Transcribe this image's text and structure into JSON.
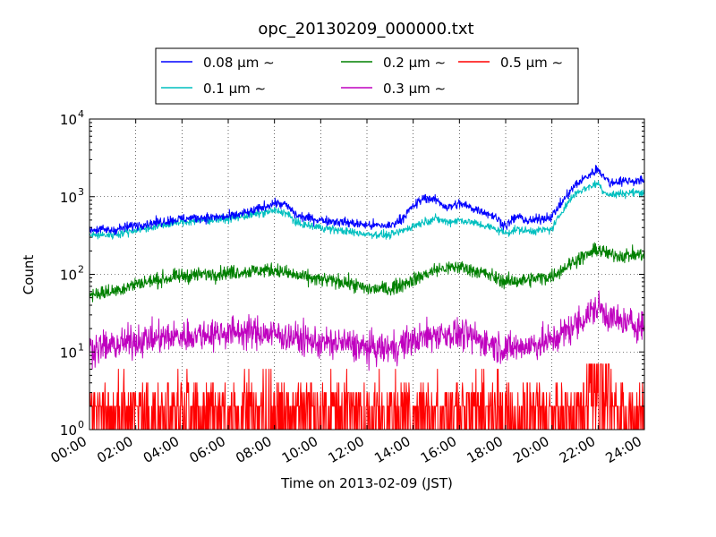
{
  "chart_data": {
    "type": "line",
    "title": "opc_20130209_000000.txt",
    "xlabel": "Time on 2013-02-09 (JST)",
    "ylabel": "Count",
    "x_unit": "hours",
    "xlim": [
      0,
      24
    ],
    "ylim": [
      1,
      10000
    ],
    "yscale": "log",
    "grid": true,
    "legend_position": "top-center",
    "x_ticks": [
      "00:00",
      "02:00",
      "04:00",
      "06:00",
      "08:00",
      "10:00",
      "12:00",
      "14:00",
      "16:00",
      "18:00",
      "20:00",
      "22:00",
      "24:00"
    ],
    "y_ticks": [
      {
        "value": 1,
        "base": "10",
        "exp": "0"
      },
      {
        "value": 10,
        "base": "10",
        "exp": "1"
      },
      {
        "value": 100,
        "base": "10",
        "exp": "2"
      },
      {
        "value": 1000,
        "base": "10",
        "exp": "3"
      },
      {
        "value": 10000,
        "base": "10",
        "exp": "4"
      }
    ],
    "series": [
      {
        "name": "0.08 μm ∼",
        "color": "#0000ff",
        "x": [
          0,
          1,
          2,
          3,
          4,
          5,
          6,
          7,
          8,
          8.5,
          9,
          10,
          11,
          12,
          13,
          13.5,
          14,
          14.5,
          15,
          15.5,
          16,
          16.5,
          17,
          17.5,
          18,
          18.5,
          19,
          20,
          20.5,
          21,
          21.5,
          22,
          22.2,
          22.5,
          23,
          24
        ],
        "y": [
          380,
          370,
          430,
          470,
          520,
          540,
          550,
          640,
          830,
          780,
          560,
          500,
          470,
          430,
          420,
          520,
          750,
          980,
          900,
          720,
          820,
          720,
          650,
          560,
          420,
          560,
          480,
          560,
          900,
          1400,
          1800,
          2300,
          1900,
          1500,
          1600,
          1600
        ],
        "noise": 0.06
      },
      {
        "name": "0.1 μm ∼",
        "color": "#00bfbf",
        "x": [
          0,
          1,
          2,
          3,
          4,
          5,
          6,
          7,
          8,
          8.5,
          9,
          10,
          11,
          12,
          13,
          13.5,
          14,
          14.5,
          15,
          15.5,
          16,
          16.5,
          17,
          17.5,
          18,
          18.5,
          19,
          20,
          20.5,
          21,
          21.5,
          22,
          22.2,
          22.5,
          23,
          24
        ],
        "y": [
          320,
          320,
          370,
          420,
          470,
          500,
          520,
          580,
          660,
          620,
          450,
          400,
          360,
          330,
          320,
          360,
          420,
          480,
          520,
          470,
          500,
          470,
          430,
          390,
          340,
          380,
          360,
          380,
          700,
          1100,
          1300,
          1500,
          1200,
          1050,
          1100,
          1150
        ],
        "noise": 0.05
      },
      {
        "name": "0.2 μm ∼",
        "color": "#008000",
        "x": [
          0,
          1,
          2,
          3,
          4,
          5,
          6,
          7,
          8,
          9,
          10,
          11,
          12,
          13,
          14,
          15,
          16,
          17,
          18,
          19,
          20,
          21,
          22,
          22.5,
          23,
          24
        ],
        "y": [
          55,
          60,
          75,
          85,
          95,
          100,
          105,
          110,
          115,
          95,
          85,
          80,
          65,
          65,
          85,
          115,
          125,
          105,
          80,
          85,
          95,
          150,
          210,
          180,
          175,
          180
        ],
        "noise": 0.09
      },
      {
        "name": "0.3 μm ∼",
        "color": "#bf00bf",
        "x": [
          0,
          1,
          2,
          3,
          4,
          5,
          6,
          7,
          8,
          9,
          10,
          11,
          12,
          13,
          14,
          15,
          16,
          17,
          18,
          19,
          20,
          21,
          22,
          22.5,
          23,
          24
        ],
        "y": [
          11,
          12,
          14,
          15,
          16,
          17,
          18,
          18,
          17,
          15,
          13,
          13,
          11,
          11,
          14,
          17,
          17,
          14,
          11,
          12,
          14,
          22,
          38,
          28,
          24,
          22
        ],
        "noise": 0.2
      },
      {
        "name": "0.5 μm ∼",
        "color": "#ff0000",
        "x": [
          0,
          6,
          12,
          18,
          21,
          22,
          23,
          24
        ],
        "y": [
          1.5,
          1.8,
          1.6,
          1.6,
          2,
          3,
          2,
          2
        ],
        "noise": 0.35
      }
    ]
  }
}
